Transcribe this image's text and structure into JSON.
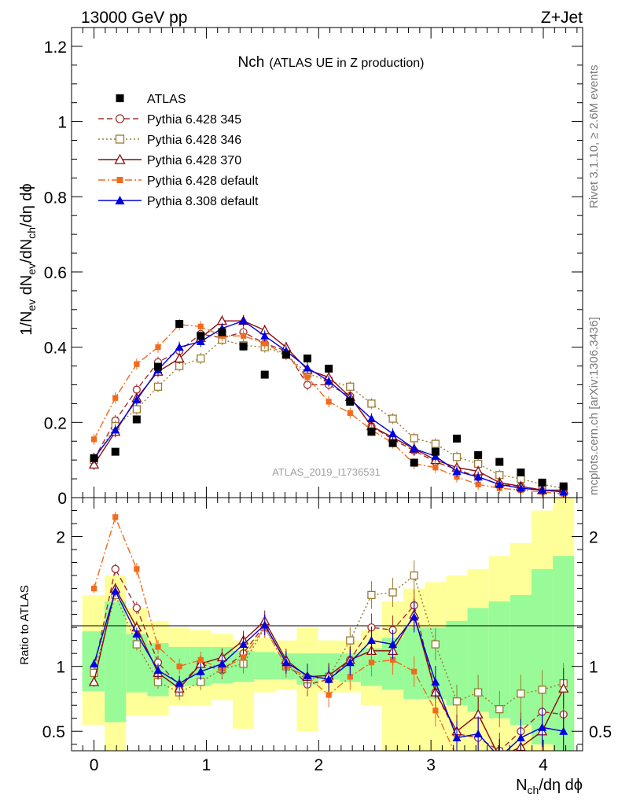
{
  "header": {
    "energy_label": "13000 GeV pp",
    "process_label": "Z+Jet"
  },
  "side_labels": {
    "rivet": "Rivet 3.1.10, ≥ 2.6M events",
    "mcplots": "mcplots.cern.ch [arXiv:1306.3436]"
  },
  "colors": {
    "data": "#000000",
    "p345": "#a0302c",
    "p346": "#9a7a30",
    "p370": "#8b0a0a",
    "p6def": "#f26a1c",
    "p8def": "#0000e0",
    "band_green": "#98fb98",
    "band_yellow": "#ffff99"
  },
  "chart_data": [
    {
      "type": "line",
      "name": "main",
      "title": "Nch",
      "subtitle": "(ATLAS UE in Z production)",
      "watermark": "ATLAS_2019_I1736531",
      "xlabel": "N_ch/dη dϕ",
      "ylabel": "1/N_ev dN_ev/dN_ch/dη dϕ",
      "xlim": [
        -0.2,
        4.35
      ],
      "ylim": [
        0,
        1.25
      ],
      "yticks": [
        0,
        0.2,
        0.4,
        0.6,
        0.8,
        1,
        1.2
      ],
      "ytick_labels": [
        "0",
        "0.2",
        "0.4",
        "0.6",
        "0.8",
        "1",
        "1.2"
      ],
      "x": [
        0.0,
        0.19,
        0.38,
        0.57,
        0.76,
        0.95,
        1.14,
        1.33,
        1.52,
        1.71,
        1.9,
        2.09,
        2.28,
        2.47,
        2.66,
        2.85,
        3.04,
        3.23,
        3.42,
        3.61,
        3.8,
        3.99,
        4.18
      ],
      "data": {
        "name": "ATLAS",
        "marker": "square-filled",
        "values": [
          0.105,
          0.122,
          0.208,
          0.348,
          0.462,
          0.43,
          0.44,
          0.402,
          0.327,
          0.38,
          0.37,
          0.343,
          0.255,
          0.175,
          0.145,
          0.093,
          0.122,
          0.157,
          0.113,
          0.095,
          0.067,
          0.04,
          0.03
        ]
      },
      "series": [
        {
          "name": "Pythia 6.428 345",
          "key": "p345",
          "dash": "7,4",
          "marker": "circle-open",
          "values": [
            0.102,
            0.205,
            0.287,
            0.36,
            0.39,
            0.435,
            0.425,
            0.44,
            0.41,
            0.39,
            0.3,
            0.3,
            0.27,
            0.19,
            0.155,
            0.125,
            0.095,
            0.075,
            0.055,
            0.035,
            0.03,
            0.02,
            0.015
          ]
        },
        {
          "name": "Pythia 6.428 346",
          "key": "p346",
          "dash": "2,3",
          "marker": "square-open",
          "values": [
            0.1,
            0.19,
            0.235,
            0.295,
            0.35,
            0.37,
            0.42,
            0.405,
            0.4,
            0.38,
            0.33,
            0.31,
            0.295,
            0.25,
            0.21,
            0.158,
            0.143,
            0.108,
            0.09,
            0.06,
            0.05,
            0.035,
            0.025
          ]
        },
        {
          "name": "Pythia 6.428 370",
          "key": "p370",
          "dash": "",
          "marker": "triangle-open",
          "values": [
            0.088,
            0.175,
            0.265,
            0.335,
            0.37,
            0.425,
            0.47,
            0.47,
            0.445,
            0.4,
            0.34,
            0.32,
            0.268,
            0.19,
            0.16,
            0.13,
            0.1,
            0.08,
            0.07,
            0.04,
            0.03,
            0.02,
            0.02
          ]
        },
        {
          "name": "Pythia 6.428 default",
          "key": "p6def",
          "dash": "9,3,2,3",
          "marker": "square-small",
          "values": [
            0.155,
            0.265,
            0.355,
            0.4,
            0.46,
            0.455,
            0.43,
            0.43,
            0.41,
            0.38,
            0.32,
            0.255,
            0.225,
            0.18,
            0.145,
            0.09,
            0.08,
            0.055,
            0.035,
            0.025,
            0.02,
            0.015,
            0.01
          ]
        },
        {
          "name": "Pythia 8.308 default",
          "key": "p8def",
          "dash": "",
          "marker": "triangle-filled",
          "values": [
            0.105,
            0.18,
            0.26,
            0.34,
            0.4,
            0.415,
            0.45,
            0.47,
            0.43,
            0.39,
            0.345,
            0.31,
            0.262,
            0.21,
            0.17,
            0.13,
            0.11,
            0.07,
            0.055,
            0.035,
            0.025,
            0.02,
            0.015
          ]
        }
      ]
    },
    {
      "type": "line",
      "name": "ratio",
      "ylabel": "Ratio to ATLAS",
      "xlabel": "N_ch/dη dϕ",
      "xlim": [
        -0.2,
        4.35
      ],
      "ylim": [
        0.35,
        2.3
      ],
      "xticks": [
        0,
        1,
        2,
        3,
        4
      ],
      "xtick_labels": [
        "0",
        "1",
        "2",
        "3",
        "4"
      ],
      "yticks": [
        0.5,
        1,
        2
      ],
      "ytick_labels": [
        "0.5",
        "1",
        "2"
      ],
      "bands": [
        {
          "x0": -0.105,
          "x1": 0.095,
          "g": [
            0.81,
            1.27
          ],
          "y": [
            0.55,
            1.55
          ]
        },
        {
          "x0": 0.095,
          "x1": 0.285,
          "g": [
            0.57,
            1.5
          ],
          "y": [
            0.3,
            1.7
          ]
        },
        {
          "x0": 0.285,
          "x1": 0.475,
          "g": [
            0.8,
            1.25
          ],
          "y": [
            0.62,
            1.45
          ]
        },
        {
          "x0": 0.475,
          "x1": 0.665,
          "g": [
            0.77,
            1.18
          ],
          "y": [
            0.62,
            1.35
          ]
        },
        {
          "x0": 0.665,
          "x1": 0.855,
          "g": [
            0.85,
            1.15
          ],
          "y": [
            0.7,
            1.3
          ]
        },
        {
          "x0": 0.855,
          "x1": 1.045,
          "g": [
            0.85,
            1.15
          ],
          "y": [
            0.7,
            1.28
          ]
        },
        {
          "x0": 1.045,
          "x1": 1.235,
          "g": [
            0.87,
            1.15
          ],
          "y": [
            0.74,
            1.25
          ]
        },
        {
          "x0": 1.235,
          "x1": 1.425,
          "g": [
            0.88,
            1.12
          ],
          "y": [
            0.52,
            1.2
          ]
        },
        {
          "x0": 1.425,
          "x1": 1.615,
          "g": [
            0.9,
            1.11
          ],
          "y": [
            0.8,
            1.22
          ]
        },
        {
          "x0": 1.615,
          "x1": 1.805,
          "g": [
            0.9,
            1.1
          ],
          "y": [
            0.82,
            1.2
          ]
        },
        {
          "x0": 1.805,
          "x1": 1.995,
          "g": [
            0.86,
            1.1
          ],
          "y": [
            0.5,
            1.3
          ]
        },
        {
          "x0": 1.995,
          "x1": 2.185,
          "g": [
            0.9,
            1.1
          ],
          "y": [
            0.8,
            1.2
          ]
        },
        {
          "x0": 2.185,
          "x1": 2.375,
          "g": [
            0.88,
            1.1
          ],
          "y": [
            0.8,
            1.2
          ]
        },
        {
          "x0": 2.375,
          "x1": 2.565,
          "g": [
            0.85,
            1.14
          ],
          "y": [
            0.7,
            1.28
          ]
        },
        {
          "x0": 2.565,
          "x1": 2.755,
          "g": [
            0.82,
            1.22
          ],
          "y": [
            0.3,
            1.5
          ]
        },
        {
          "x0": 2.755,
          "x1": 2.945,
          "g": [
            0.75,
            1.3
          ],
          "y": [
            0.3,
            1.6
          ]
        },
        {
          "x0": 2.945,
          "x1": 3.135,
          "g": [
            0.75,
            1.3
          ],
          "y": [
            0.3,
            1.65
          ]
        },
        {
          "x0": 3.135,
          "x1": 3.325,
          "g": [
            0.7,
            1.35
          ],
          "y": [
            0.3,
            1.7
          ]
        },
        {
          "x0": 3.325,
          "x1": 3.515,
          "g": [
            0.65,
            1.45
          ],
          "y": [
            0.3,
            1.75
          ]
        },
        {
          "x0": 3.515,
          "x1": 3.705,
          "g": [
            0.6,
            1.5
          ],
          "y": [
            0.3,
            1.85
          ]
        },
        {
          "x0": 3.705,
          "x1": 3.895,
          "g": [
            0.55,
            1.55
          ],
          "y": [
            0.3,
            1.95
          ]
        },
        {
          "x0": 3.895,
          "x1": 4.085,
          "g": [
            0.4,
            1.75
          ],
          "y": [
            0.3,
            2.2
          ]
        },
        {
          "x0": 4.085,
          "x1": 4.275,
          "g": [
            0.35,
            1.85
          ],
          "y": [
            0.3,
            2.4
          ]
        }
      ],
      "series": [
        {
          "key": "p345",
          "dash": "7,4",
          "marker": "circle-open",
          "values": [
            0.98,
            1.75,
            1.45,
            1.03,
            0.85,
            1.02,
            0.97,
            1.1,
            1.32,
            1.03,
            0.86,
            0.9,
            1.05,
            1.3,
            1.28,
            1.47,
            0.8,
            0.48,
            0.45,
            0.35,
            0.5,
            0.65,
            0.63
          ]
        },
        {
          "key": "p346",
          "dash": "2,3",
          "marker": "square-open",
          "values": [
            0.95,
            1.55,
            1.17,
            0.88,
            0.8,
            0.88,
            0.98,
            1.02,
            1.3,
            1.0,
            0.9,
            0.92,
            1.2,
            1.55,
            1.57,
            1.7,
            1.17,
            0.73,
            0.8,
            0.67,
            0.79,
            0.82,
            0.87
          ]
        },
        {
          "key": "p370",
          "dash": "",
          "marker": "triangle-open",
          "values": [
            0.88,
            1.6,
            1.3,
            0.95,
            0.83,
            1.02,
            1.07,
            1.2,
            1.35,
            1.05,
            0.92,
            0.93,
            1.05,
            1.12,
            1.12,
            1.4,
            0.8,
            0.5,
            0.63,
            0.3,
            0.38,
            0.5,
            0.83
          ]
        },
        {
          "key": "p6def",
          "dash": "9,3,2,3",
          "marker": "square-small",
          "values": [
            1.6,
            2.15,
            1.75,
            1.15,
            1.0,
            1.05,
            0.98,
            1.07,
            1.3,
            1.0,
            0.92,
            0.78,
            0.92,
            1.03,
            1.05,
            0.96,
            0.66,
            0.3,
            0.3,
            0.3,
            0.3,
            0.3,
            0.3
          ]
        },
        {
          "key": "p8def",
          "dash": "",
          "marker": "triangle-filled",
          "values": [
            1.02,
            1.58,
            1.25,
            0.97,
            0.87,
            0.96,
            1.02,
            1.17,
            1.32,
            1.03,
            0.93,
            0.9,
            1.03,
            1.2,
            1.17,
            1.38,
            0.88,
            0.45,
            0.48,
            0.3,
            0.45,
            0.53,
            0.5
          ]
        }
      ]
    }
  ]
}
